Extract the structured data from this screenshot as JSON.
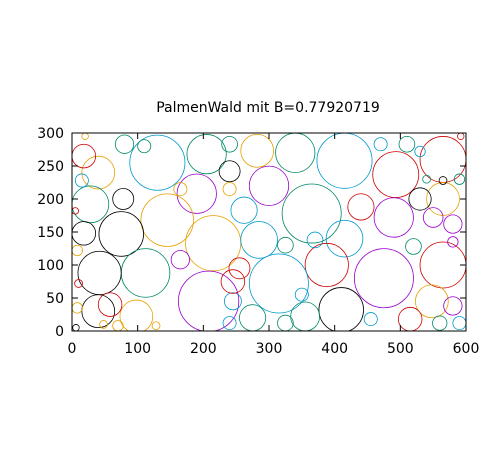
{
  "chart_data": {
    "type": "scatter",
    "title": "PalmenWald mit B=0.77920719",
    "xlabel": "",
    "ylabel": "",
    "xlim": [
      0,
      600
    ],
    "ylim": [
      0,
      300
    ],
    "xticks": [
      0,
      100,
      200,
      300,
      400,
      500,
      600
    ],
    "yticks": [
      0,
      50,
      100,
      150,
      200,
      250,
      300
    ],
    "xtick_labels": [
      "0",
      "100",
      "200",
      "300",
      "400",
      "500",
      "600"
    ],
    "ytick_labels": [
      "0",
      "50",
      "100",
      "150",
      "200",
      "250",
      "300"
    ],
    "grid": false,
    "legend": "none",
    "colors": [
      "#000000",
      "#cc0000",
      "#0099cc",
      "#008866",
      "#9900cc",
      "#e6a000"
    ],
    "circles": [
      {
        "x": 130,
        "y": 255,
        "r": 42,
        "color": "#0099cc"
      },
      {
        "x": 205,
        "y": 268,
        "r": 30,
        "color": "#008866"
      },
      {
        "x": 282,
        "y": 273,
        "r": 25,
        "color": "#e6a000"
      },
      {
        "x": 340,
        "y": 270,
        "r": 30,
        "color": "#008866"
      },
      {
        "x": 415,
        "y": 258,
        "r": 42,
        "color": "#0099cc"
      },
      {
        "x": 565,
        "y": 260,
        "r": 35,
        "color": "#cc0000"
      },
      {
        "x": 493,
        "y": 237,
        "r": 35,
        "color": "#cc0000"
      },
      {
        "x": 40,
        "y": 240,
        "r": 25,
        "color": "#e6a000"
      },
      {
        "x": 18,
        "y": 265,
        "r": 18,
        "color": "#cc0000"
      },
      {
        "x": 240,
        "y": 242,
        "r": 16,
        "color": "#000000"
      },
      {
        "x": 300,
        "y": 220,
        "r": 30,
        "color": "#9900cc"
      },
      {
        "x": 365,
        "y": 178,
        "r": 45,
        "color": "#008866"
      },
      {
        "x": 190,
        "y": 208,
        "r": 30,
        "color": "#9900cc"
      },
      {
        "x": 145,
        "y": 168,
        "r": 40,
        "color": "#e6a000"
      },
      {
        "x": 215,
        "y": 133,
        "r": 42,
        "color": "#e6a000"
      },
      {
        "x": 262,
        "y": 183,
        "r": 20,
        "color": "#0099cc"
      },
      {
        "x": 285,
        "y": 138,
        "r": 28,
        "color": "#0099cc"
      },
      {
        "x": 28,
        "y": 192,
        "r": 28,
        "color": "#008866"
      },
      {
        "x": 78,
        "y": 200,
        "r": 16,
        "color": "#000000"
      },
      {
        "x": 75,
        "y": 147,
        "r": 34,
        "color": "#000000"
      },
      {
        "x": 18,
        "y": 148,
        "r": 18,
        "color": "#000000"
      },
      {
        "x": 112,
        "y": 88,
        "r": 37,
        "color": "#008866"
      },
      {
        "x": 42,
        "y": 88,
        "r": 33,
        "color": "#000000"
      },
      {
        "x": 415,
        "y": 140,
        "r": 28,
        "color": "#0099cc"
      },
      {
        "x": 490,
        "y": 172,
        "r": 30,
        "color": "#9900cc"
      },
      {
        "x": 440,
        "y": 188,
        "r": 20,
        "color": "#cc0000"
      },
      {
        "x": 565,
        "y": 200,
        "r": 25,
        "color": "#e6a000"
      },
      {
        "x": 530,
        "y": 200,
        "r": 17,
        "color": "#000000"
      },
      {
        "x": 550,
        "y": 172,
        "r": 15,
        "color": "#9900cc"
      },
      {
        "x": 580,
        "y": 162,
        "r": 14,
        "color": "#9900cc"
      },
      {
        "x": 565,
        "y": 100,
        "r": 35,
        "color": "#cc0000"
      },
      {
        "x": 475,
        "y": 80,
        "r": 45,
        "color": "#9900cc"
      },
      {
        "x": 388,
        "y": 100,
        "r": 33,
        "color": "#cc0000"
      },
      {
        "x": 315,
        "y": 72,
        "r": 45,
        "color": "#0099cc"
      },
      {
        "x": 208,
        "y": 45,
        "r": 46,
        "color": "#9900cc"
      },
      {
        "x": 98,
        "y": 22,
        "r": 25,
        "color": "#e6a000"
      },
      {
        "x": 40,
        "y": 30,
        "r": 25,
        "color": "#000000"
      },
      {
        "x": 410,
        "y": 32,
        "r": 34,
        "color": "#000000"
      },
      {
        "x": 325,
        "y": 12,
        "r": 12,
        "color": "#008866"
      },
      {
        "x": 355,
        "y": 22,
        "r": 22,
        "color": "#008866"
      },
      {
        "x": 275,
        "y": 20,
        "r": 20,
        "color": "#008866"
      },
      {
        "x": 548,
        "y": 45,
        "r": 25,
        "color": "#e6a000"
      },
      {
        "x": 515,
        "y": 18,
        "r": 18,
        "color": "#cc0000"
      },
      {
        "x": 580,
        "y": 38,
        "r": 14,
        "color": "#9900cc"
      },
      {
        "x": 560,
        "y": 12,
        "r": 11,
        "color": "#008866"
      },
      {
        "x": 245,
        "y": 45,
        "r": 13,
        "color": "#0099cc"
      },
      {
        "x": 255,
        "y": 95,
        "r": 16,
        "color": "#cc0000"
      },
      {
        "x": 325,
        "y": 130,
        "r": 12,
        "color": "#008866"
      },
      {
        "x": 520,
        "y": 128,
        "r": 12,
        "color": "#008866"
      },
      {
        "x": 110,
        "y": 280,
        "r": 10,
        "color": "#008866"
      },
      {
        "x": 80,
        "y": 283,
        "r": 14,
        "color": "#008866"
      },
      {
        "x": 240,
        "y": 283,
        "r": 12,
        "color": "#008866"
      },
      {
        "x": 510,
        "y": 283,
        "r": 12,
        "color": "#008866"
      },
      {
        "x": 530,
        "y": 272,
        "r": 8,
        "color": "#0099cc"
      },
      {
        "x": 470,
        "y": 283,
        "r": 10,
        "color": "#0099cc"
      },
      {
        "x": 15,
        "y": 228,
        "r": 10,
        "color": "#0099cc"
      },
      {
        "x": 165,
        "y": 215,
        "r": 10,
        "color": "#e6a000"
      },
      {
        "x": 240,
        "y": 215,
        "r": 10,
        "color": "#e6a000"
      },
      {
        "x": 165,
        "y": 108,
        "r": 14,
        "color": "#9900cc"
      },
      {
        "x": 245,
        "y": 75,
        "r": 18,
        "color": "#cc0000"
      },
      {
        "x": 350,
        "y": 55,
        "r": 10,
        "color": "#0099cc"
      },
      {
        "x": 58,
        "y": 40,
        "r": 18,
        "color": "#cc0000"
      },
      {
        "x": 240,
        "y": 12,
        "r": 10,
        "color": "#0099cc"
      },
      {
        "x": 370,
        "y": 138,
        "r": 12,
        "color": "#0099cc"
      },
      {
        "x": 455,
        "y": 18,
        "r": 10,
        "color": "#0099cc"
      },
      {
        "x": 590,
        "y": 12,
        "r": 10,
        "color": "#0099cc"
      },
      {
        "x": 590,
        "y": 230,
        "r": 8,
        "color": "#008866"
      },
      {
        "x": 580,
        "y": 135,
        "r": 8,
        "color": "#9900cc"
      },
      {
        "x": 5,
        "y": 182,
        "r": 5,
        "color": "#cc0000"
      },
      {
        "x": 8,
        "y": 122,
        "r": 8,
        "color": "#e6a000"
      },
      {
        "x": 10,
        "y": 72,
        "r": 6,
        "color": "#cc0000"
      },
      {
        "x": 8,
        "y": 35,
        "r": 8,
        "color": "#e6a000"
      },
      {
        "x": 6,
        "y": 5,
        "r": 5,
        "color": "#000000"
      },
      {
        "x": 48,
        "y": 10,
        "r": 6,
        "color": "#e6a000"
      },
      {
        "x": 70,
        "y": 8,
        "r": 8,
        "color": "#e6a000"
      },
      {
        "x": 128,
        "y": 8,
        "r": 6,
        "color": "#e6a000"
      },
      {
        "x": 565,
        "y": 228,
        "r": 6,
        "color": "#000000"
      },
      {
        "x": 540,
        "y": 230,
        "r": 6,
        "color": "#008866"
      },
      {
        "x": 20,
        "y": 295,
        "r": 5,
        "color": "#e6a000"
      },
      {
        "x": 592,
        "y": 295,
        "r": 5,
        "color": "#cc0000"
      }
    ]
  }
}
